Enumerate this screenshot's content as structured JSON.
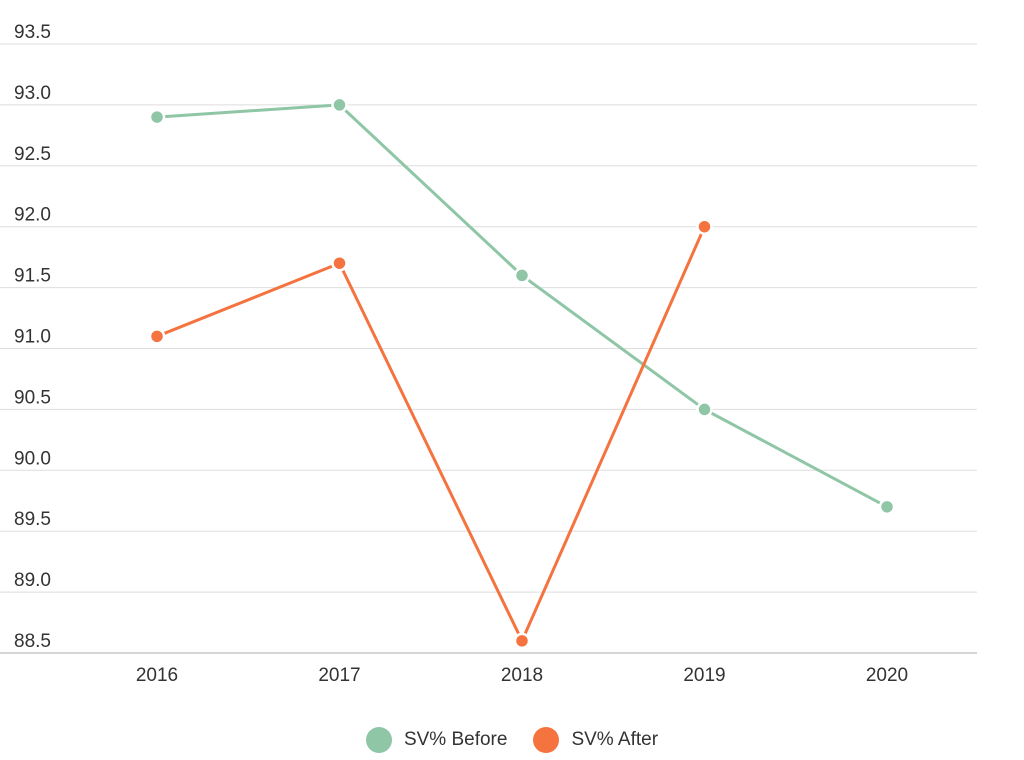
{
  "chart_data": {
    "type": "line",
    "title": "",
    "xlabel": "",
    "ylabel": "",
    "categories": [
      "2016",
      "2017",
      "2018",
      "2019",
      "2020"
    ],
    "ylim": [
      88.5,
      93.5
    ],
    "yticks": [
      "93.5",
      "93.0",
      "92.5",
      "92.0",
      "91.5",
      "91.0",
      "90.5",
      "90.0",
      "89.5",
      "89.0",
      "88.5"
    ],
    "grid": true,
    "legend_position": "bottom-center",
    "series": [
      {
        "name": "SV% Before",
        "color": "#8fc6a6",
        "values": [
          92.9,
          93.0,
          91.6,
          90.5,
          89.7
        ]
      },
      {
        "name": "SV% After",
        "color": "#f4733e",
        "values": [
          91.1,
          91.7,
          88.6,
          92.0,
          null
        ]
      }
    ]
  }
}
